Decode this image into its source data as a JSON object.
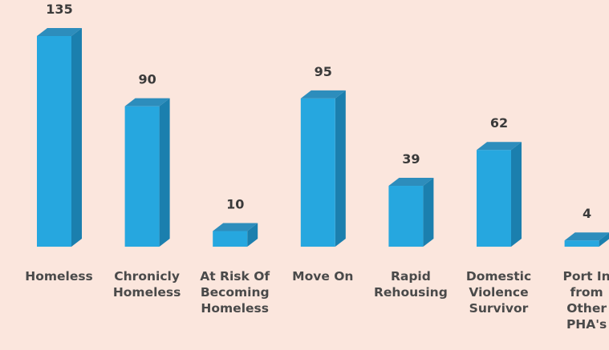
{
  "chart_data": {
    "type": "bar",
    "style": "3d-column",
    "categories": [
      [
        "Homeless"
      ],
      [
        "Chronicly",
        "Homeless"
      ],
      [
        "At Risk Of",
        "Becoming",
        "Homeless"
      ],
      [
        "Move On"
      ],
      [
        "Rapid",
        "Rehousing"
      ],
      [
        "Domestic",
        "Violence",
        "Survivor"
      ],
      [
        "Port In",
        "from",
        "Other",
        "PHA's"
      ]
    ],
    "values": [
      135,
      90,
      10,
      95,
      39,
      62,
      4
    ],
    "ylim": [
      0,
      135
    ],
    "grid": false,
    "legend": "none",
    "colors": {
      "background": "#fbe6dd",
      "bar_front": "#26a7df",
      "bar_side": "#1b7fae",
      "bar_top": "#2d8dbc"
    }
  }
}
